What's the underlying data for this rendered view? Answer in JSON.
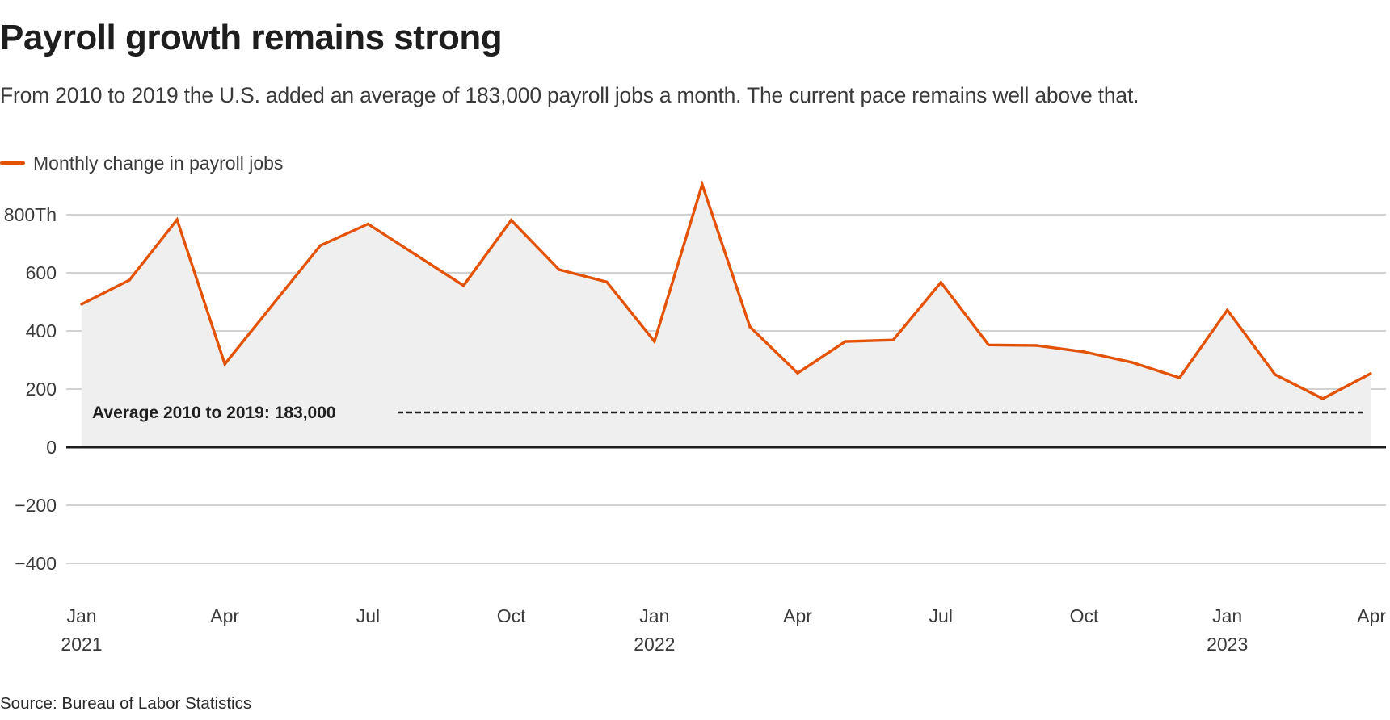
{
  "header": {
    "title": "Payroll growth remains strong",
    "subtitle": "From 2010 to 2019 the U.S. added an average of 183,000 payroll jobs a month. The current pace remains well above that."
  },
  "legend": {
    "label": "Monthly change in payroll jobs",
    "color": "#E35205"
  },
  "footer": {
    "source": "Source: Bureau of Labor Statistics"
  },
  "chart_data": {
    "type": "area",
    "title": "Payroll growth remains strong",
    "xlabel": "",
    "ylabel": "",
    "y_unit_suffix_top": "Th",
    "ylim": [
      -500,
      900
    ],
    "grid": true,
    "legend_position": "top-left",
    "y_ticks": [
      {
        "value": 800,
        "label": "800Th"
      },
      {
        "value": 600,
        "label": "600"
      },
      {
        "value": 400,
        "label": "400"
      },
      {
        "value": 200,
        "label": "200"
      },
      {
        "value": 0,
        "label": "0"
      },
      {
        "value": -200,
        "label": "−200"
      },
      {
        "value": -400,
        "label": "−400"
      }
    ],
    "x_ticks": [
      {
        "index": 0,
        "label": "Jan",
        "year": "2021"
      },
      {
        "index": 3,
        "label": "Apr",
        "year": ""
      },
      {
        "index": 6,
        "label": "Jul",
        "year": ""
      },
      {
        "index": 9,
        "label": "Oct",
        "year": ""
      },
      {
        "index": 12,
        "label": "Jan",
        "year": "2022"
      },
      {
        "index": 15,
        "label": "Apr",
        "year": ""
      },
      {
        "index": 18,
        "label": "Jul",
        "year": ""
      },
      {
        "index": 21,
        "label": "Oct",
        "year": ""
      },
      {
        "index": 24,
        "label": "Jan",
        "year": "2023"
      },
      {
        "index": 27,
        "label": "Apr",
        "year": ""
      }
    ],
    "x": [
      "2021-01",
      "2021-02",
      "2021-03",
      "2021-04",
      "2021-05",
      "2021-06",
      "2021-07",
      "2021-08",
      "2021-09",
      "2021-10",
      "2021-11",
      "2021-12",
      "2022-01",
      "2022-02",
      "2022-03",
      "2022-04",
      "2022-05",
      "2022-06",
      "2022-07",
      "2022-08",
      "2022-09",
      "2022-10",
      "2022-11",
      "2022-12",
      "2023-01",
      "2023-02",
      "2023-03",
      "2023-04"
    ],
    "series": [
      {
        "name": "Monthly change in payroll jobs",
        "color": "#E35205",
        "fill": "#efefef",
        "values": [
          492,
          575,
          783,
          286,
          490,
          694,
          768,
          662,
          556,
          781,
          611,
          569,
          364,
          904,
          414,
          255,
          364,
          369,
          567,
          352,
          350,
          328,
          292,
          239,
          472,
          250,
          167,
          253
        ]
      }
    ],
    "annotations": [
      {
        "text": "Average 2010 to 2019: 183,000",
        "value": 183,
        "style": "dashed"
      }
    ]
  }
}
